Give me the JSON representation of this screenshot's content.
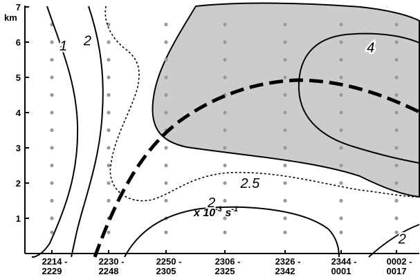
{
  "chart_data": {
    "type": "contour",
    "y_axis": {
      "unit_label": "km",
      "range": [
        0,
        7
      ],
      "ticks": [
        {
          "value": 1,
          "label": "1"
        },
        {
          "value": 2,
          "label": "2"
        },
        {
          "value": 3,
          "label": "3"
        },
        {
          "value": 4,
          "label": "4"
        },
        {
          "value": 5,
          "label": "5"
        },
        {
          "value": 6,
          "label": "6"
        },
        {
          "value": 7,
          "label": "7"
        }
      ]
    },
    "x_axis": {
      "categories": [
        {
          "line1": "2214 -",
          "line2": "2229"
        },
        {
          "line1": "2230 -",
          "line2": "2248"
        },
        {
          "line1": "2250 -",
          "line2": "2305"
        },
        {
          "line1": "2306 -",
          "line2": "2325"
        },
        {
          "line1": "2326 -",
          "line2": "2342"
        },
        {
          "line1": "2344 -",
          "line2": "0001"
        },
        {
          "line1": "0002 -",
          "line2": "0017"
        }
      ]
    },
    "units_text": {
      "base": "x 10",
      "exponent": "-3",
      "unit": " s",
      "unit_exp": "-1"
    },
    "contour_labels": [
      {
        "text": "1",
        "x": 0.2,
        "y": 5.9
      },
      {
        "text": "2",
        "x": 0.62,
        "y": 6.05
      },
      {
        "text": "2",
        "x": 2.78,
        "y": 1.45
      },
      {
        "text": "2.5",
        "x": 3.45,
        "y": 2.0
      },
      {
        "text": "4",
        "x": 5.55,
        "y": 5.85
      },
      {
        "text": "2",
        "x": 6.1,
        "y": 0.42
      }
    ],
    "grid_dots": {
      "columns": [
        0,
        1,
        2,
        3,
        4,
        5,
        6
      ],
      "rows": [
        0.6,
        1.0,
        1.5,
        2.0,
        2.5,
        3.0,
        3.5,
        4.0,
        4.5,
        5.0,
        5.5,
        6.0,
        6.5
      ],
      "color": "#999999"
    },
    "shaded_region_color": "#cccccc",
    "line_color": "#000000",
    "grid": false
  }
}
